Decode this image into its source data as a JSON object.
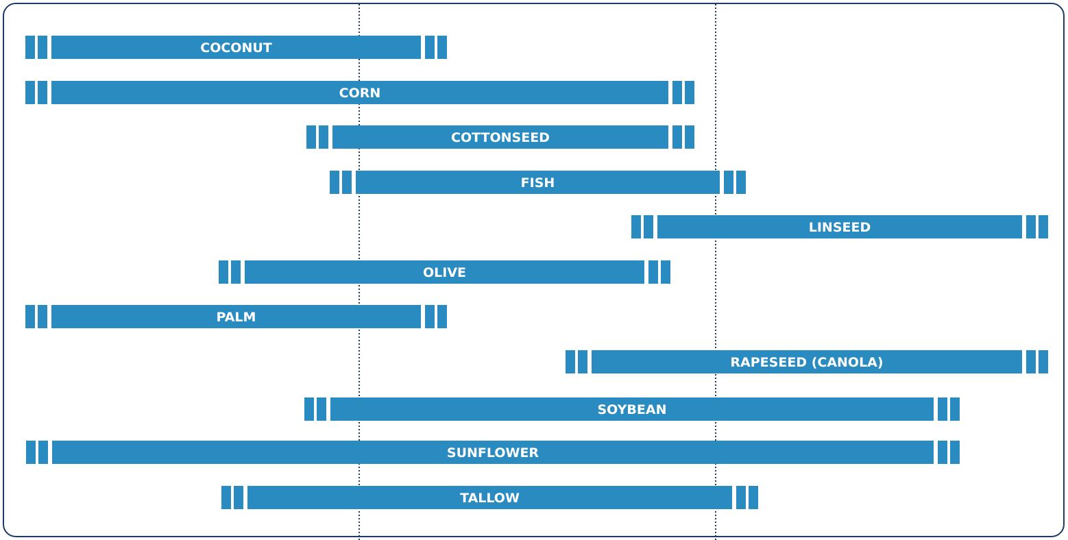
{
  "rows": [
    {
      "label": "COCONUT"
    },
    {
      "label": "CORN"
    },
    {
      "label": "COTTONSEED"
    },
    {
      "label": "FISH"
    },
    {
      "label": "LINSEED"
    },
    {
      "label": "OLIVE"
    },
    {
      "label": "PALM"
    },
    {
      "label": "RAPESEED (CANOLA)"
    },
    {
      "label": "SOYBEAN"
    },
    {
      "label": "SUNFLOWER"
    },
    {
      "label": "TALLOW"
    }
  ]
}
